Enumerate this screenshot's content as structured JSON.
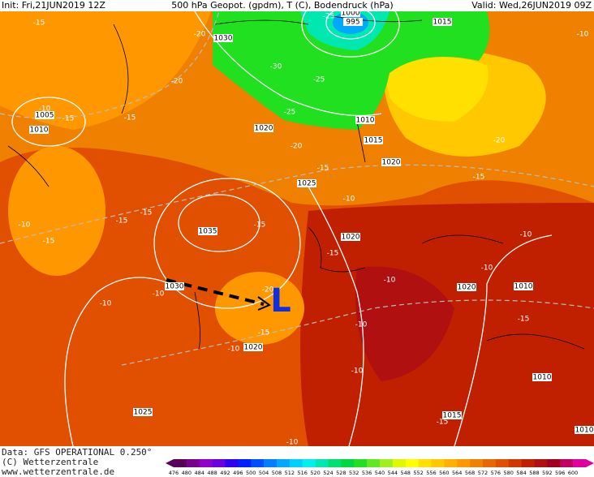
{
  "header": {
    "init": "Init: Fri,21JUN2019 12Z",
    "title": "500 hPa Geopot. (gpdm), T (C), Bodendruck (hPa)",
    "valid": "Valid: Wed,26JUN2019 09Z"
  },
  "map": {
    "isobar_labels": [
      "1000",
      "995",
      "1030",
      "1015",
      "1005",
      "1010",
      "1020",
      "1010",
      "1015",
      "1020",
      "1025",
      "1035",
      "1020",
      "1030",
      "1020",
      "1010",
      "1020",
      "1025",
      "1015",
      "1010",
      "1010"
    ],
    "temperature_labels": [
      "-15",
      "-20",
      "-25",
      "-30",
      "-25",
      "-20",
      "-10",
      "-15",
      "-25",
      "-20",
      "-15",
      "-20",
      "-15",
      "-10",
      "-10",
      "-15",
      "-15",
      "-15",
      "-15",
      "-10",
      "-15",
      "-10",
      "-10",
      "-10",
      "-10",
      "-20",
      "-15",
      "-10",
      "-10",
      "-10",
      "-15",
      "-10",
      "-15",
      "-10",
      "-15"
    ],
    "low_marker": "L"
  },
  "footer": {
    "data": "Data: GFS OPERATIONAL 0.250°",
    "copyright": "(C) Wetterzentrale",
    "url": "www.wetterzentrale.de"
  },
  "colorbar": {
    "labels": [
      476,
      480,
      484,
      488,
      492,
      496,
      500,
      504,
      508,
      512,
      516,
      520,
      524,
      528,
      532,
      536,
      540,
      544,
      548,
      552,
      556,
      560,
      564,
      568,
      572,
      576,
      580,
      584,
      588,
      592,
      596,
      600
    ],
    "colors": [
      "#5a005a",
      "#7a0090",
      "#9000c8",
      "#6a00e0",
      "#3000f0",
      "#0020ff",
      "#0050ff",
      "#0080ff",
      "#00a8ff",
      "#00d0ff",
      "#00f0f0",
      "#00e8b0",
      "#00e070",
      "#00d840",
      "#20e020",
      "#60e820",
      "#a0f020",
      "#e0f800",
      "#ffff00",
      "#ffe000",
      "#ffc800",
      "#ffb000",
      "#ff9800",
      "#f08000",
      "#e86800",
      "#e05000",
      "#d03800",
      "#c02000",
      "#b01010",
      "#a00020",
      "#c00060",
      "#e000a0"
    ]
  }
}
